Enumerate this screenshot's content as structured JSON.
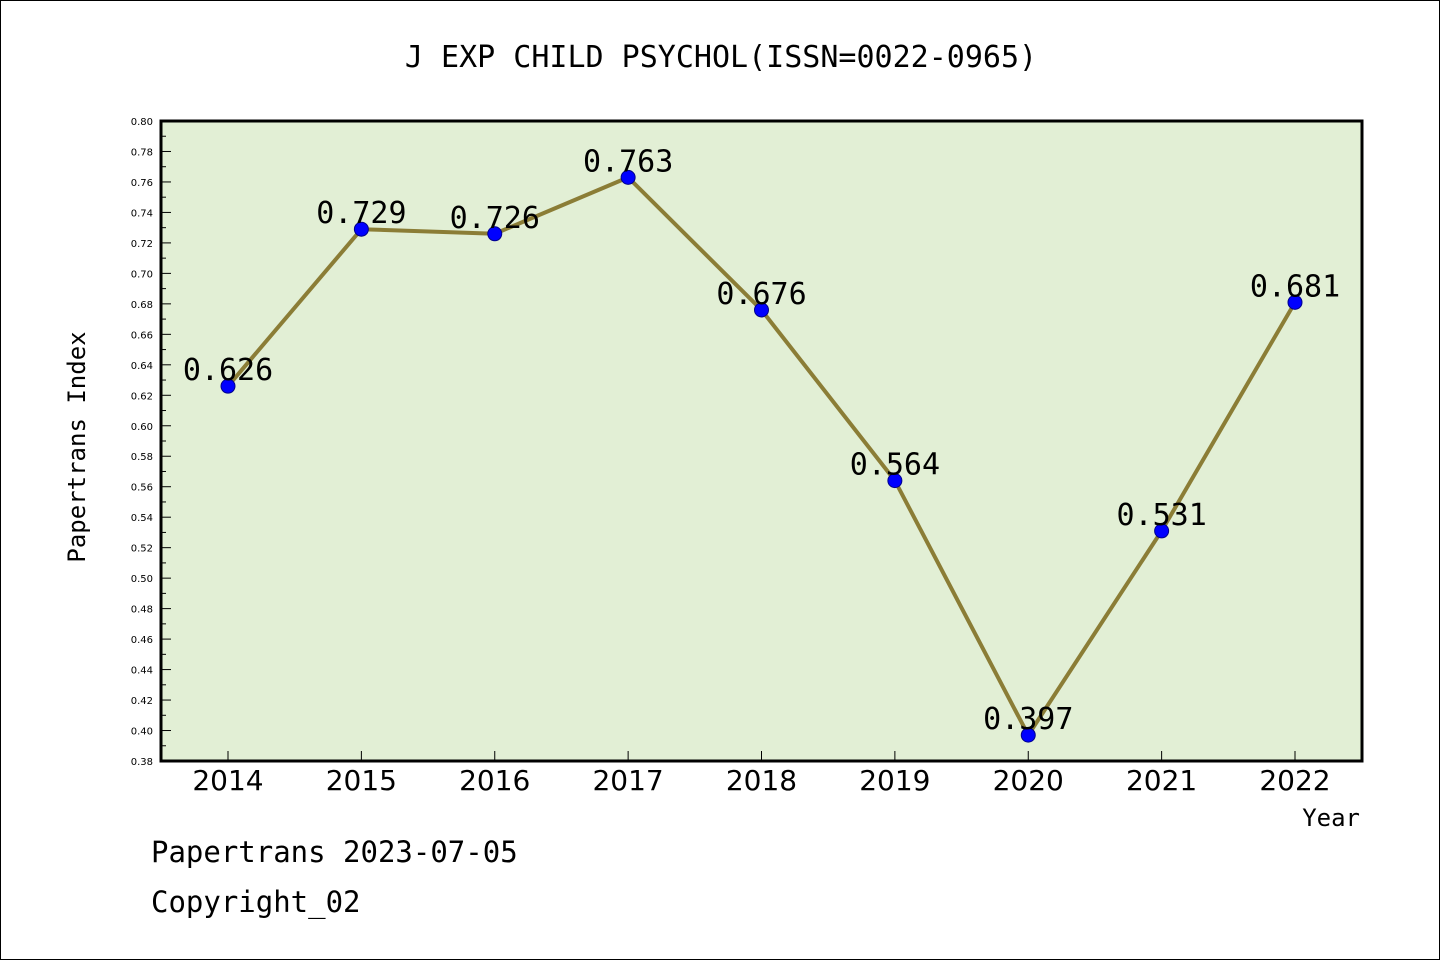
{
  "chart_data": {
    "type": "line",
    "title": "J EXP CHILD PSYCHOL(ISSN=0022-0965)",
    "xlabel": "Year",
    "ylabel": "Papertrans Index",
    "categories": [
      "2014",
      "2015",
      "2016",
      "2017",
      "2018",
      "2019",
      "2020",
      "2021",
      "2022"
    ],
    "series": [
      {
        "values": [
          0.626,
          0.729,
          0.726,
          0.763,
          0.676,
          0.564,
          0.397,
          0.531,
          0.681
        ],
        "labels": [
          "0.626",
          "0.729",
          "0.726",
          "0.763",
          "0.676",
          "0.564",
          "0.397",
          "0.531",
          "0.681"
        ]
      }
    ],
    "ylim": [
      0.38,
      0.8
    ],
    "yticks": [
      "0.38",
      "0.40",
      "0.42",
      "0.44",
      "0.46",
      "0.48",
      "0.50",
      "0.52",
      "0.54",
      "0.56",
      "0.58",
      "0.60",
      "0.62",
      "0.64",
      "0.66",
      "0.68",
      "0.70",
      "0.72",
      "0.74",
      "0.76",
      "0.78",
      "0.80"
    ],
    "grid": false,
    "legend": "none",
    "colors": {
      "plot_background": "#e2efd5",
      "line": "#8b7d36",
      "marker": "#0000ff",
      "marker_edge": "#00008b"
    }
  },
  "footer": {
    "date_text": "Papertrans 2023-07-05",
    "copyright_text": "Copyright_02"
  }
}
